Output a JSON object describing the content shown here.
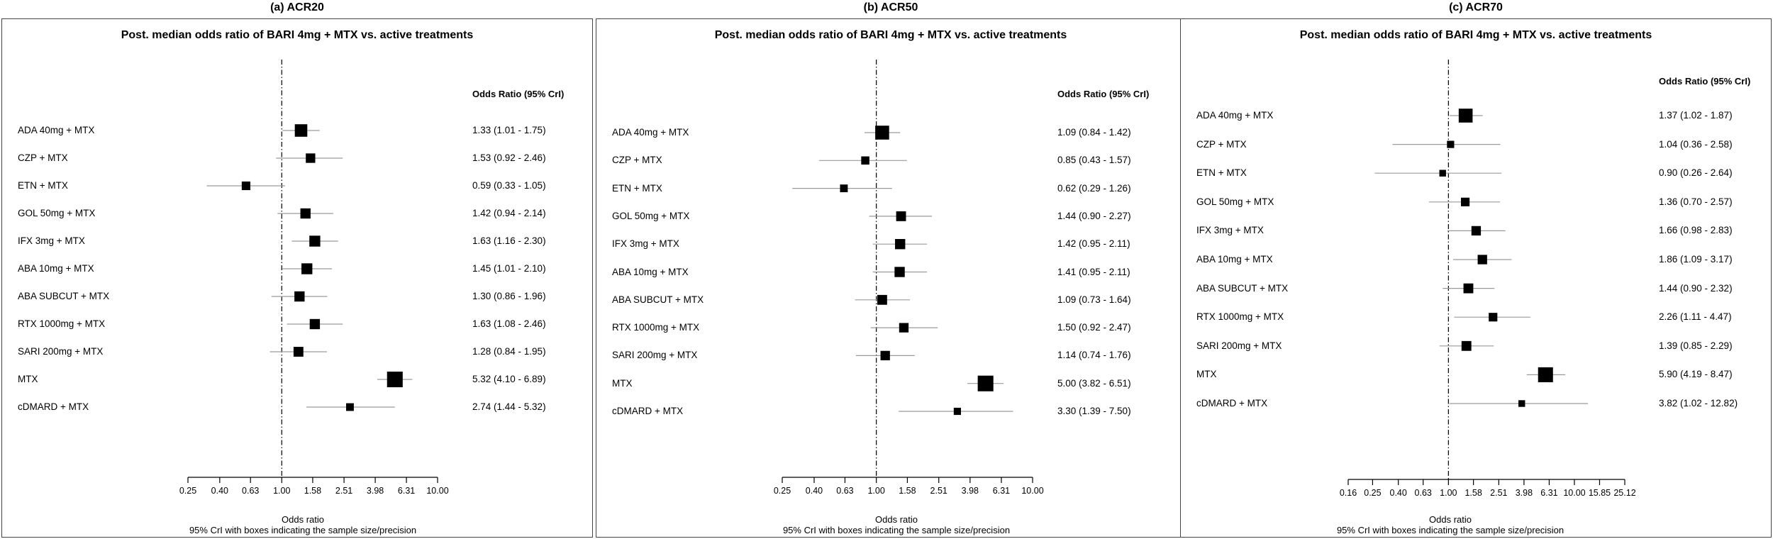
{
  "colors": {
    "box": "#000000",
    "ci_line": "#9a9a9a",
    "ref_line": "#000000",
    "frame": "#444444"
  },
  "chart_data": [
    {
      "type": "forest",
      "panel_title": "(a) ACR20",
      "title": "Post. median odds ratio of BARI 4mg + MTX vs. active treatments",
      "or_header": "Odds Ratio (95% CrI)",
      "xlabel": "Odds ratio",
      "xsublabel": "95% CrI with boxes indicating the sample size/precision",
      "x_scale": "log",
      "reference_value": 1.0,
      "xticks": [
        0.25,
        0.4,
        0.63,
        1.0,
        1.58,
        2.51,
        3.98,
        6.31,
        10.0
      ],
      "xtick_labels": [
        "0.25",
        "0.40",
        "0.63",
        "1.00",
        "1.58",
        "2.51",
        "3.98",
        "6.31",
        "10.00"
      ],
      "rows": [
        {
          "label": "ADA 40mg + MTX",
          "or": 1.33,
          "lo": 1.01,
          "hi": 1.75,
          "text": "1.33 (1.01 - 1.75)",
          "weight": 2.1
        },
        {
          "label": "CZP + MTX",
          "or": 1.53,
          "lo": 0.92,
          "hi": 2.46,
          "text": "1.53 (0.92 - 2.46)",
          "weight": 1.2
        },
        {
          "label": "ETN + MTX",
          "or": 0.59,
          "lo": 0.33,
          "hi": 1.05,
          "text": "0.59 (0.33 - 1.05)",
          "weight": 1.0
        },
        {
          "label": "GOL 50mg + MTX",
          "or": 1.42,
          "lo": 0.94,
          "hi": 2.14,
          "text": "1.42 (0.94 - 2.14)",
          "weight": 1.4
        },
        {
          "label": "IFX 3mg + MTX",
          "or": 1.63,
          "lo": 1.16,
          "hi": 2.3,
          "text": "1.63 (1.16 - 2.30)",
          "weight": 1.6
        },
        {
          "label": "ABA 10mg + MTX",
          "or": 1.45,
          "lo": 1.01,
          "hi": 2.1,
          "text": "1.45 (1.01 - 2.10)",
          "weight": 1.6
        },
        {
          "label": "ABA SUBCUT + MTX",
          "or": 1.3,
          "lo": 0.86,
          "hi": 1.96,
          "text": "1.30 (0.86 - 1.96)",
          "weight": 1.4
        },
        {
          "label": "RTX 1000mg + MTX",
          "or": 1.63,
          "lo": 1.08,
          "hi": 2.46,
          "text": "1.63 (1.08 - 2.46)",
          "weight": 1.4
        },
        {
          "label": "SARI 200mg + MTX",
          "or": 1.28,
          "lo": 0.84,
          "hi": 1.95,
          "text": "1.28 (0.84 - 1.95)",
          "weight": 1.3
        },
        {
          "label": "MTX",
          "or": 5.32,
          "lo": 4.1,
          "hi": 6.89,
          "text": "5.32 (4.10 - 6.89)",
          "weight": 3.3
        },
        {
          "label": "cDMARD + MTX",
          "or": 2.74,
          "lo": 1.44,
          "hi": 5.32,
          "text": "2.74 (1.44 - 5.32)",
          "weight": 0.8
        }
      ]
    },
    {
      "type": "forest",
      "panel_title": "(b) ACR50",
      "title": "Post. median odds ratio of BARI 4mg + MTX vs. active treatments",
      "or_header": "Odds Ratio (95% CrI)",
      "xlabel": "Odds ratio",
      "xsublabel": "95% CrI with boxes indicating the sample size/precision",
      "x_scale": "log",
      "reference_value": 1.0,
      "xticks": [
        0.25,
        0.4,
        0.63,
        1.0,
        1.58,
        2.51,
        3.98,
        6.31,
        10.0
      ],
      "xtick_labels": [
        "0.25",
        "0.40",
        "0.63",
        "1.00",
        "1.58",
        "2.51",
        "3.98",
        "6.31",
        "10.00"
      ],
      "rows": [
        {
          "label": "ADA 40mg + MTX",
          "or": 1.09,
          "lo": 0.84,
          "hi": 1.42,
          "text": "1.09 (0.84 - 1.42)",
          "weight": 2.6
        },
        {
          "label": "CZP + MTX",
          "or": 0.85,
          "lo": 0.43,
          "hi": 1.57,
          "text": "0.85 (0.43 - 1.57)",
          "weight": 0.9
        },
        {
          "label": "ETN + MTX",
          "or": 0.62,
          "lo": 0.29,
          "hi": 1.26,
          "text": "0.62 (0.29 - 1.26)",
          "weight": 0.8
        },
        {
          "label": "GOL 50mg + MTX",
          "or": 1.44,
          "lo": 0.9,
          "hi": 2.27,
          "text": "1.44 (0.90 - 2.27)",
          "weight": 1.3
        },
        {
          "label": "IFX 3mg + MTX",
          "or": 1.42,
          "lo": 0.95,
          "hi": 2.11,
          "text": "1.42 (0.95 - 2.11)",
          "weight": 1.4
        },
        {
          "label": "ABA 10mg + MTX",
          "or": 1.41,
          "lo": 0.95,
          "hi": 2.11,
          "text": "1.41 (0.95 - 2.11)",
          "weight": 1.4
        },
        {
          "label": "ABA SUBCUT + MTX",
          "or": 1.09,
          "lo": 0.73,
          "hi": 1.64,
          "text": "1.09 (0.73 - 1.64)",
          "weight": 1.3
        },
        {
          "label": "RTX 1000mg + MTX",
          "or": 1.5,
          "lo": 0.92,
          "hi": 2.47,
          "text": "1.50 (0.92 - 2.47)",
          "weight": 1.2
        },
        {
          "label": "SARI 200mg + MTX",
          "or": 1.14,
          "lo": 0.74,
          "hi": 1.76,
          "text": "1.14 (0.74 - 1.76)",
          "weight": 1.2
        },
        {
          "label": "MTX",
          "or": 5.0,
          "lo": 3.82,
          "hi": 6.51,
          "text": "5.00 (3.82 - 6.51)",
          "weight": 3.3
        },
        {
          "label": "cDMARD + MTX",
          "or": 3.3,
          "lo": 1.39,
          "hi": 7.5,
          "text": "3.30 (1.39 - 7.50)",
          "weight": 0.7
        }
      ]
    },
    {
      "type": "forest",
      "panel_title": "(c) ACR70",
      "title": "Post. median odds ratio of BARI 4mg + MTX vs. active treatments",
      "or_header": "Odds Ratio (95% CrI)",
      "xlabel": "Odds ratio",
      "xsublabel": "95% CrI with boxes indicating the sample size/precision",
      "x_scale": "log",
      "reference_value": 1.0,
      "xticks": [
        0.16,
        0.25,
        0.4,
        0.63,
        1.0,
        1.58,
        2.51,
        3.98,
        6.31,
        10.0,
        15.85,
        25.12
      ],
      "xtick_labels": [
        "0.16",
        "0.25",
        "0.40",
        "0.63",
        "1.00",
        "1.58",
        "2.51",
        "3.98",
        "6.31",
        "10.00",
        "15.85",
        "25.12"
      ],
      "rows": [
        {
          "label": "ADA 40mg + MTX",
          "or": 1.37,
          "lo": 1.02,
          "hi": 1.87,
          "text": "1.37 (1.02 - 1.87)",
          "weight": 2.6
        },
        {
          "label": "CZP + MTX",
          "or": 1.04,
          "lo": 0.36,
          "hi": 2.58,
          "text": "1.04 (0.36 - 2.58)",
          "weight": 0.7
        },
        {
          "label": "ETN + MTX",
          "or": 0.9,
          "lo": 0.26,
          "hi": 2.64,
          "text": "0.90 (0.26 - 2.64)",
          "weight": 0.6
        },
        {
          "label": "GOL 50mg + MTX",
          "or": 1.36,
          "lo": 0.7,
          "hi": 2.57,
          "text": "1.36 (0.70 - 2.57)",
          "weight": 1.0
        },
        {
          "label": "IFX 3mg + MTX",
          "or": 1.66,
          "lo": 0.98,
          "hi": 2.83,
          "text": "1.66 (0.98 - 2.83)",
          "weight": 1.2
        },
        {
          "label": "ABA 10mg + MTX",
          "or": 1.86,
          "lo": 1.09,
          "hi": 3.17,
          "text": "1.86 (1.09 - 3.17)",
          "weight": 1.2
        },
        {
          "label": "ABA SUBCUT + MTX",
          "or": 1.44,
          "lo": 0.9,
          "hi": 2.32,
          "text": "1.44 (0.90 - 2.32)",
          "weight": 1.3
        },
        {
          "label": "RTX 1000mg + MTX",
          "or": 2.26,
          "lo": 1.11,
          "hi": 4.47,
          "text": "2.26 (1.11 - 4.47)",
          "weight": 1.0
        },
        {
          "label": "SARI 200mg + MTX",
          "or": 1.39,
          "lo": 0.85,
          "hi": 2.29,
          "text": "1.39 (0.85 - 2.29)",
          "weight": 1.3
        },
        {
          "label": "MTX",
          "or": 5.9,
          "lo": 4.19,
          "hi": 8.47,
          "text": "5.90 (4.19 - 8.47)",
          "weight": 3.0
        },
        {
          "label": "cDMARD + MTX",
          "or": 3.82,
          "lo": 1.02,
          "hi": 12.82,
          "text": "3.82 (1.02 - 12.82)",
          "weight": 0.6
        }
      ]
    }
  ]
}
